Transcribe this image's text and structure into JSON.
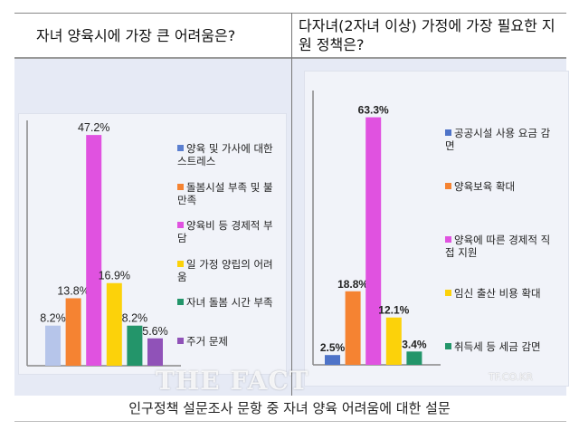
{
  "headers": {
    "left": "자녀 양육시에 가장 큰 어려움은?",
    "right": "다자녀(2자녀 이상) 가정에 가장 필요한 지원 정책은?"
  },
  "caption": "인구정책 설문조사 문항 중 자녀 양육 어려움에 대한 설문",
  "watermark": {
    "logo": "THE FACT",
    "url": "TF.CO.KR"
  },
  "chart_data": [
    {
      "type": "bar",
      "title": "자녀 양육시에 가장 큰 어려움은?",
      "unit": "%",
      "legend": "right",
      "categories": [
        "양육 및 가사에 대한 스트레스",
        "돌봄시설 부족 및 불만족",
        "양육비 등 경제적 부담",
        "일 가정 양립의 어려움",
        "자녀 돌봄 시간 부족",
        "주거 문제"
      ],
      "values": [
        8.2,
        13.8,
        47.2,
        16.9,
        8.2,
        5.6
      ],
      "labels": [
        "8.2%",
        "13.8%",
        "47.2%",
        "16.9%",
        "8.2%",
        "5.6%"
      ],
      "colors": [
        "#b6c5ea",
        "#f58332",
        "#e052e0",
        "#fcd20a",
        "#23956a",
        "#9052b8"
      ],
      "legend_colors": [
        "#5b7fd0",
        "#f58332",
        "#e052e0",
        "#fcd20a",
        "#23956a",
        "#9052b8"
      ]
    },
    {
      "type": "bar",
      "title": "다자녀(2자녀 이상) 가정에 가장 필요한 지원 정책은?",
      "unit": "%",
      "legend": "right",
      "categories": [
        "공공시설 사용 요금 감면",
        "양육보육 확대",
        "양육에 따른 경제적 직접 지원",
        "임신 출산 비용 확대",
        "취득세 등 세금 감면"
      ],
      "values": [
        2.5,
        18.8,
        63.3,
        12.1,
        3.4
      ],
      "labels": [
        "2.5%",
        "18.8%",
        "63.3%",
        "12.1%",
        "3.4%"
      ],
      "colors": [
        "#4e73c8",
        "#f58332",
        "#e052e0",
        "#fcd20a",
        "#23956a"
      ],
      "legend_colors": [
        "#4e73c8",
        "#f58332",
        "#e052e0",
        "#fcd20a",
        "#23956a"
      ]
    }
  ]
}
